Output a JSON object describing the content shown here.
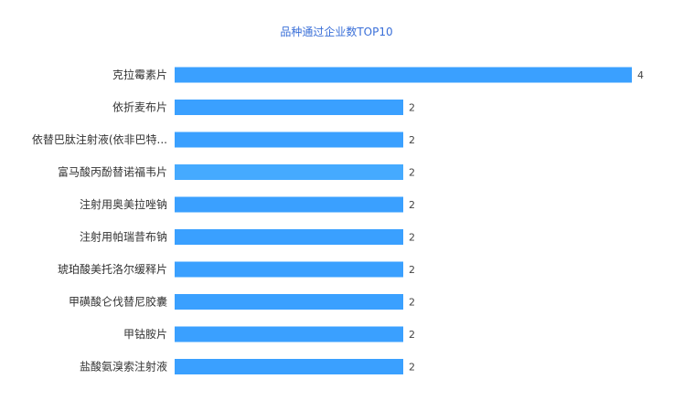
{
  "chart_data": {
    "type": "bar",
    "orientation": "horizontal",
    "title": "品种通过企业数TOP10",
    "categories": [
      "克拉霉素片",
      "依折麦布片",
      "依替巴肽注射液(依非巴特...",
      "富马酸丙酚替诺福韦片",
      "注射用奥美拉唑钠",
      "注射用帕瑞昔布钠",
      "琥珀酸美托洛尔缓释片",
      "甲磺酸仑伐替尼胶囊",
      "甲钴胺片",
      "盐酸氨溴索注射液"
    ],
    "values": [
      4,
      2,
      2,
      2,
      2,
      2,
      2,
      2,
      2,
      2
    ],
    "value_labels": [
      "4",
      "2",
      "2",
      "2",
      "2",
      "2",
      "2",
      "2",
      "2",
      "2"
    ],
    "xlim": [
      0,
      4
    ],
    "grid": false,
    "legend": "none",
    "colors": {
      "bar": "#3aa0ff",
      "bar_highlight": "#45aaff",
      "title": "#3a6fd8"
    }
  }
}
